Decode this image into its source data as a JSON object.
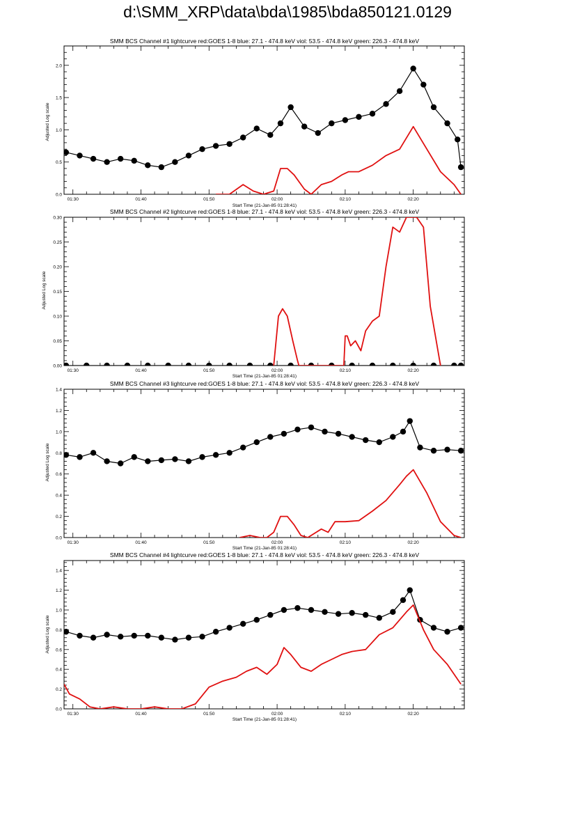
{
  "page": {
    "title": "d:\\SMM_XRP\\data\\bda\\1985\\bda850121.0129",
    "xlabel": "Start Time (21-Jan-85 01:28:41)",
    "ylabel": "Adjusted Log scale"
  },
  "colors": {
    "goes": "#e01010",
    "bcs": "#000000"
  },
  "chart_data": [
    {
      "type": "line",
      "title": "SMM BCS Channel #1 lightcurve  red:GOES 1-8  blue: 27.1 - 474.8 keV  viol: 53.5 - 474.8 keV  green: 226.3 - 474.8 keV",
      "xlabel": "Start Time (21-Jan-85 01:28:41)",
      "ylabel": "Adjusted Log scale",
      "xlim": [
        88.7,
        147.5
      ],
      "ylim": [
        0,
        2.3
      ],
      "xticks": [
        90,
        100,
        110,
        120,
        130,
        140
      ],
      "xtick_labels": [
        "01:30",
        "01:40",
        "01:50",
        "02:00",
        "02:10",
        "02:20"
      ],
      "yticks": [
        0,
        0.5,
        1.0,
        1.5,
        2.0
      ],
      "ytick_labels": [
        "0.0",
        "0.5",
        "1.0",
        "1.5",
        "2.0"
      ],
      "series": [
        {
          "name": "BCS Channel #1",
          "color": "#000000",
          "marker": "circle",
          "x": [
            89,
            91,
            93,
            95,
            97,
            99,
            101,
            103,
            105,
            107,
            109,
            111,
            113,
            115,
            117,
            119,
            120.5,
            122,
            124,
            126,
            128,
            130,
            132,
            134,
            136,
            138,
            140,
            141.5,
            143,
            145,
            146.5,
            147
          ],
          "y": [
            0.65,
            0.6,
            0.55,
            0.5,
            0.55,
            0.52,
            0.45,
            0.42,
            0.5,
            0.6,
            0.7,
            0.75,
            0.78,
            0.88,
            1.02,
            0.92,
            1.1,
            1.35,
            1.05,
            0.95,
            1.1,
            1.15,
            1.2,
            1.25,
            1.4,
            1.6,
            1.95,
            1.7,
            1.35,
            1.1,
            0.85,
            0.42
          ]
        },
        {
          "name": "GOES 1-8",
          "color": "#e01010",
          "x": [
            111,
            113,
            115,
            116.5,
            118,
            119.5,
            120.5,
            121.5,
            122.5,
            124,
            125,
            126.5,
            128,
            129.5,
            130.5,
            132,
            134,
            136,
            138,
            140,
            142,
            144,
            146,
            147
          ],
          "y": [
            0,
            0,
            0.15,
            0.05,
            0,
            0.05,
            0.4,
            0.4,
            0.3,
            0.08,
            0,
            0.15,
            0.2,
            0.3,
            0.35,
            0.35,
            0.45,
            0.6,
            0.7,
            1.05,
            0.7,
            0.35,
            0.15,
            0
          ]
        }
      ]
    },
    {
      "type": "line",
      "title": "SMM BCS Channel #2 lightcurve  red:GOES 1-8  blue: 27.1 - 474.8 keV  viol: 53.5 - 474.8 keV  green: 226.3 - 474.8 keV",
      "xlabel": "Start Time (21-Jan-85 01:28:41)",
      "ylabel": "Adjusted Log scale",
      "xlim": [
        88.7,
        147.5
      ],
      "ylim": [
        0,
        0.3
      ],
      "xticks": [
        90,
        100,
        110,
        120,
        130,
        140
      ],
      "xtick_labels": [
        "01:30",
        "01:40",
        "01:50",
        "02:00",
        "02:10",
        "02:20"
      ],
      "yticks": [
        0,
        0.05,
        0.1,
        0.15,
        0.2,
        0.25,
        0.3
      ],
      "ytick_labels": [
        "0.00",
        "0.05",
        "0.10",
        "0.15",
        "0.20",
        "0.25",
        "0.30"
      ],
      "series": [
        {
          "name": "BCS Channel #2",
          "color": "#000000",
          "marker": "circle",
          "x": [
            89,
            92,
            95,
            98,
            101,
            104,
            107,
            110,
            113,
            116,
            119,
            122,
            125,
            128,
            131,
            134,
            137,
            140,
            143,
            146,
            147
          ],
          "y": [
            0,
            0,
            0,
            0,
            0,
            0,
            0,
            0,
            0,
            0,
            0,
            0,
            0,
            0,
            0,
            0,
            0,
            0,
            0,
            0,
            0
          ]
        },
        {
          "name": "GOES 1-8",
          "color": "#e01010",
          "x": [
            119.5,
            120.2,
            120.8,
            121.5,
            122.3,
            123.0,
            123.2,
            129.8,
            130.0,
            130.3,
            130.8,
            131.5,
            132.3,
            133.0,
            134.0,
            135.0,
            136.0,
            137.0,
            138.0,
            139.0,
            140.5,
            141.5,
            142.0,
            142.5,
            143.0,
            143.5,
            144.0
          ],
          "y": [
            0,
            0.1,
            0.115,
            0.1,
            0.05,
            0.01,
            0,
            0,
            0.06,
            0.06,
            0.04,
            0.05,
            0.03,
            0.07,
            0.09,
            0.1,
            0.2,
            0.28,
            0.27,
            0.3,
            0.3,
            0.28,
            0.2,
            0.12,
            0.08,
            0.04,
            0
          ]
        }
      ]
    },
    {
      "type": "line",
      "title": "SMM BCS Channel #3 lightcurve  red:GOES 1-8  blue: 27.1 - 474.8 keV  viol: 53.5 - 474.8 keV  green: 226.3 - 474.8 keV",
      "xlabel": "Start Time (21-Jan-85 01:28:41)",
      "ylabel": "Adjusted Log scale",
      "xlim": [
        88.7,
        147.5
      ],
      "ylim": [
        0,
        1.4
      ],
      "xticks": [
        90,
        100,
        110,
        120,
        130,
        140
      ],
      "xtick_labels": [
        "01:30",
        "01:40",
        "01:50",
        "02:00",
        "02:10",
        "02:20"
      ],
      "yticks": [
        0,
        0.2,
        0.4,
        0.6,
        0.8,
        1.0,
        1.2,
        1.4
      ],
      "ytick_labels": [
        "0.0",
        "0.2",
        "0.4",
        "0.6",
        "0.8",
        "1.0",
        "1.2",
        "1.4"
      ],
      "series": [
        {
          "name": "BCS Channel #3",
          "color": "#000000",
          "marker": "circle",
          "x": [
            89,
            91,
            93,
            95,
            97,
            99,
            101,
            103,
            105,
            107,
            109,
            111,
            113,
            115,
            117,
            119,
            121,
            123,
            125,
            127,
            129,
            131,
            133,
            135,
            137,
            138.5,
            139.5,
            141,
            143,
            145,
            147
          ],
          "y": [
            0.78,
            0.76,
            0.8,
            0.72,
            0.7,
            0.76,
            0.72,
            0.73,
            0.74,
            0.72,
            0.76,
            0.78,
            0.8,
            0.85,
            0.9,
            0.95,
            0.98,
            1.02,
            1.04,
            1.0,
            0.98,
            0.95,
            0.92,
            0.9,
            0.95,
            1.0,
            1.1,
            0.85,
            0.82,
            0.83,
            0.82
          ]
        },
        {
          "name": "GOES 1-8",
          "color": "#e01010",
          "x": [
            114.5,
            116,
            117.5,
            118.5,
            119.5,
            120.5,
            121.5,
            122.5,
            123.5,
            124.5,
            126.5,
            127.5,
            128.5,
            130,
            132,
            134,
            136,
            138,
            139,
            140,
            142,
            144,
            146,
            147
          ],
          "y": [
            0,
            0.02,
            0,
            0,
            0.05,
            0.2,
            0.2,
            0.12,
            0.02,
            0,
            0.08,
            0.05,
            0.15,
            0.15,
            0.16,
            0.25,
            0.35,
            0.5,
            0.58,
            0.64,
            0.42,
            0.15,
            0.02,
            0
          ]
        }
      ]
    },
    {
      "type": "line",
      "title": "SMM BCS Channel #4 lightcurve  red:GOES 1-8  blue: 27.1 - 474.8 keV  viol: 53.5 - 474.8 keV  green: 226.3 - 474.8 keV",
      "xlabel": "Start Time (21-Jan-85 01:28:41)",
      "ylabel": "Adjusted Log scale",
      "xlim": [
        88.7,
        147.5
      ],
      "ylim": [
        0,
        1.5
      ],
      "xticks": [
        90,
        100,
        110,
        120,
        130,
        140
      ],
      "xtick_labels": [
        "01:30",
        "01:40",
        "01:50",
        "02:00",
        "02:10",
        "02:20"
      ],
      "yticks": [
        0,
        0.2,
        0.4,
        0.6,
        0.8,
        1.0,
        1.2,
        1.4
      ],
      "ytick_labels": [
        "0.0",
        "0.2",
        "0.4",
        "0.6",
        "0.8",
        "1.0",
        "1.2",
        "1.4"
      ],
      "series": [
        {
          "name": "BCS Channel #4",
          "color": "#000000",
          "marker": "circle",
          "x": [
            89,
            91,
            93,
            95,
            97,
            99,
            101,
            103,
            105,
            107,
            109,
            111,
            113,
            115,
            117,
            119,
            121,
            123,
            125,
            127,
            129,
            131,
            133,
            135,
            137,
            138.5,
            139.5,
            141,
            143,
            145,
            147
          ],
          "y": [
            0.78,
            0.74,
            0.72,
            0.75,
            0.73,
            0.74,
            0.74,
            0.72,
            0.7,
            0.72,
            0.73,
            0.78,
            0.82,
            0.86,
            0.9,
            0.95,
            1.0,
            1.02,
            1.0,
            0.98,
            0.96,
            0.97,
            0.95,
            0.92,
            0.98,
            1.1,
            1.2,
            0.9,
            0.82,
            0.78,
            0.82
          ]
        },
        {
          "name": "GOES 1-8",
          "color": "#e01010",
          "x": [
            88.7,
            89.5,
            91,
            92.5,
            94,
            96,
            98,
            100,
            102,
            104,
            106,
            108,
            110,
            112,
            114,
            115.5,
            117,
            118.5,
            120,
            121,
            122,
            123.5,
            125,
            126.5,
            128,
            129.5,
            131,
            133,
            135,
            137,
            139,
            140,
            141.5,
            143,
            145,
            147
          ],
          "y": [
            0.25,
            0.15,
            0.1,
            0.02,
            0,
            0.02,
            0,
            0,
            0.02,
            0,
            0,
            0.05,
            0.22,
            0.28,
            0.32,
            0.38,
            0.42,
            0.35,
            0.45,
            0.62,
            0.55,
            0.42,
            0.38,
            0.45,
            0.5,
            0.55,
            0.58,
            0.6,
            0.75,
            0.82,
            0.98,
            1.05,
            0.8,
            0.6,
            0.45,
            0.25
          ]
        }
      ]
    }
  ]
}
